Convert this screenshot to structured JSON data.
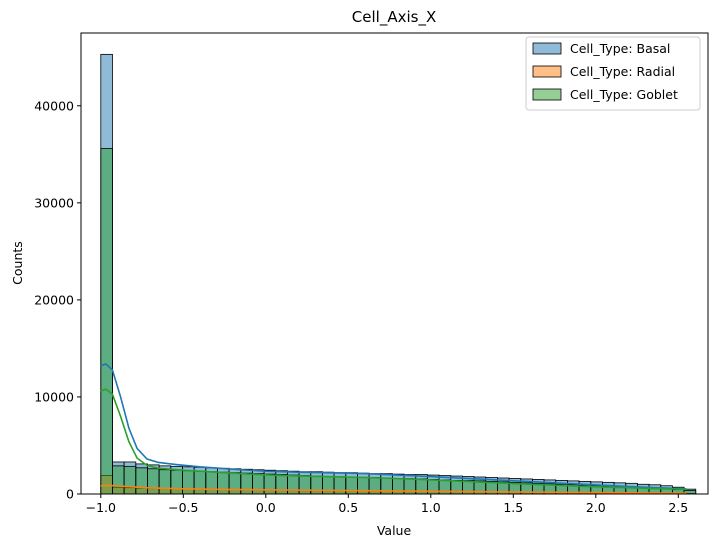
{
  "chart_data": {
    "type": "histogram",
    "title": "Cell_Axis_X",
    "xlabel": "Value",
    "ylabel": "Counts",
    "xlim": [
      -1.12,
      2.68
    ],
    "ylim": [
      0,
      47500
    ],
    "x_ticks": [
      -1.0,
      -0.5,
      0.0,
      0.5,
      1.0,
      1.5,
      2.0,
      2.5
    ],
    "x_tick_labels": [
      "−1.0",
      "−0.5",
      "0.0",
      "0.5",
      "1.0",
      "1.5",
      "2.0",
      "2.5"
    ],
    "y_ticks": [
      0,
      10000,
      20000,
      30000,
      40000
    ],
    "y_tick_labels": [
      "0",
      "10000",
      "20000",
      "30000",
      "40000"
    ],
    "bin_start": -1.0,
    "bin_width": 0.0707,
    "legend_position": "top-right",
    "grid": false,
    "series": [
      {
        "name": "Cell_Type: Basal",
        "color": "#1f77b4",
        "counts": [
          45300,
          3300,
          3300,
          3100,
          3000,
          2900,
          2850,
          2800,
          2750,
          2700,
          2650,
          2600,
          2550,
          2500,
          2450,
          2400,
          2350,
          2300,
          2300,
          2250,
          2200,
          2200,
          2150,
          2100,
          2100,
          2050,
          2000,
          2000,
          1950,
          1900,
          1850,
          1800,
          1750,
          1700,
          1650,
          1600,
          1550,
          1500,
          1450,
          1400,
          1350,
          1300,
          1250,
          1200,
          1150,
          1100,
          1000,
          950,
          850,
          700,
          500
        ],
        "kde": [
          [
            -1.0,
            13200
          ],
          [
            -0.97,
            13400
          ],
          [
            -0.93,
            12800
          ],
          [
            -0.88,
            10000
          ],
          [
            -0.83,
            6800
          ],
          [
            -0.78,
            4700
          ],
          [
            -0.72,
            3600
          ],
          [
            -0.65,
            3250
          ],
          [
            -0.55,
            3050
          ],
          [
            -0.4,
            2800
          ],
          [
            -0.2,
            2550
          ],
          [
            0.0,
            2350
          ],
          [
            0.2,
            2250
          ],
          [
            0.4,
            2180
          ],
          [
            0.6,
            2100
          ],
          [
            0.8,
            1950
          ],
          [
            1.0,
            1800
          ],
          [
            1.2,
            1620
          ],
          [
            1.4,
            1450
          ],
          [
            1.6,
            1280
          ],
          [
            1.8,
            1100
          ],
          [
            2.0,
            930
          ],
          [
            2.2,
            770
          ],
          [
            2.4,
            620
          ],
          [
            2.55,
            520
          ]
        ]
      },
      {
        "name": "Cell_Type: Radial",
        "color": "#ff7f0e",
        "counts": [
          1900,
          700,
          650,
          600,
          580,
          560,
          540,
          520,
          500,
          480,
          460,
          440,
          430,
          420,
          410,
          400,
          390,
          380,
          370,
          360,
          350,
          340,
          330,
          320,
          310,
          300,
          290,
          280,
          270,
          260,
          250,
          240,
          230,
          220,
          210,
          200,
          190,
          180,
          170,
          160,
          150,
          140,
          130,
          120,
          110,
          100,
          90,
          80,
          70,
          60,
          50
        ],
        "kde": [
          [
            -1.0,
            850
          ],
          [
            -0.95,
            880
          ],
          [
            -0.85,
            780
          ],
          [
            -0.7,
            620
          ],
          [
            -0.5,
            530
          ],
          [
            -0.2,
            460
          ],
          [
            0.2,
            400
          ],
          [
            0.6,
            340
          ],
          [
            1.0,
            280
          ],
          [
            1.4,
            220
          ],
          [
            1.8,
            170
          ],
          [
            2.2,
            120
          ],
          [
            2.55,
            80
          ]
        ]
      },
      {
        "name": "Cell_Type: Goblet",
        "color": "#2ca02c",
        "counts": [
          35600,
          2900,
          2850,
          2700,
          2600,
          2500,
          2450,
          2400,
          2350,
          2300,
          2250,
          2200,
          2150,
          2100,
          2050,
          2000,
          1950,
          1900,
          1850,
          1800,
          1780,
          1750,
          1720,
          1700,
          1650,
          1600,
          1580,
          1550,
          1500,
          1450,
          1400,
          1380,
          1350,
          1300,
          1250,
          1200,
          1150,
          1100,
          1050,
          1000,
          950,
          900,
          850,
          800,
          750,
          700,
          650,
          600,
          550,
          450,
          350
        ],
        "kde": [
          [
            -1.0,
            10600
          ],
          [
            -0.97,
            10800
          ],
          [
            -0.93,
            10300
          ],
          [
            -0.88,
            8000
          ],
          [
            -0.83,
            5400
          ],
          [
            -0.78,
            3700
          ],
          [
            -0.72,
            2950
          ],
          [
            -0.65,
            2650
          ],
          [
            -0.5,
            2450
          ],
          [
            -0.3,
            2250
          ],
          [
            -0.1,
            2050
          ],
          [
            0.1,
            1900
          ],
          [
            0.3,
            1820
          ],
          [
            0.5,
            1750
          ],
          [
            0.7,
            1650
          ],
          [
            0.9,
            1520
          ],
          [
            1.1,
            1380
          ],
          [
            1.3,
            1230
          ],
          [
            1.5,
            1080
          ],
          [
            1.7,
            940
          ],
          [
            1.9,
            810
          ],
          [
            2.1,
            690
          ],
          [
            2.3,
            590
          ],
          [
            2.55,
            480
          ]
        ]
      }
    ]
  }
}
